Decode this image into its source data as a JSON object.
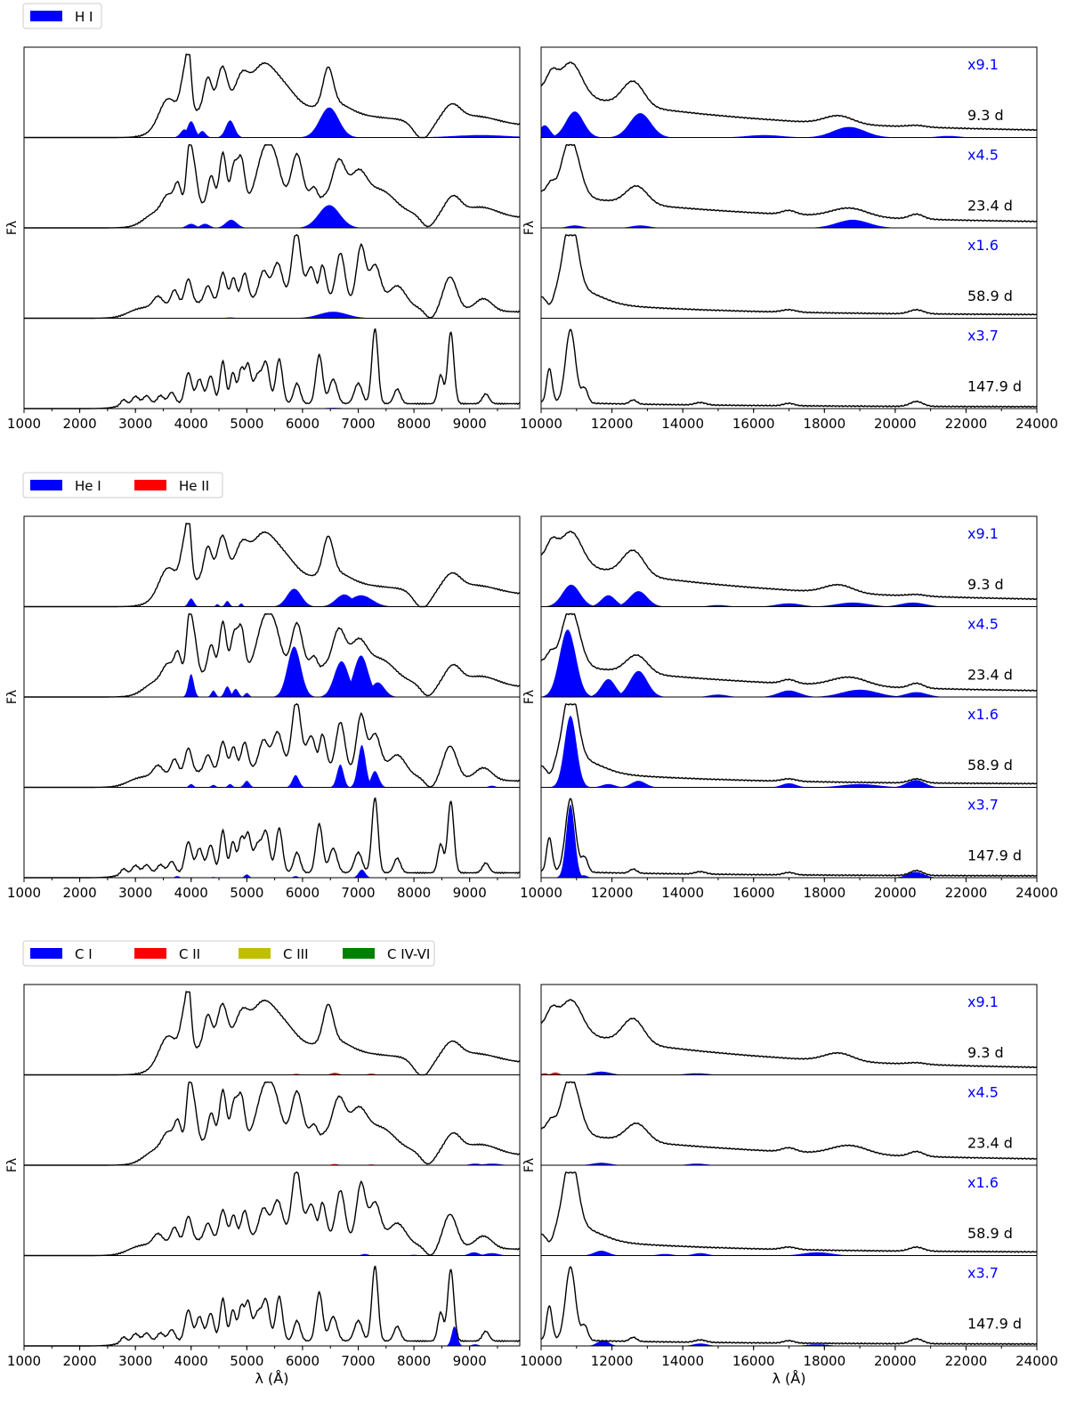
{
  "chart_data": {
    "type": "line",
    "description_units": "flux F_lambda (arbitrary, normalized per panel) vs wavelength in Angstrom",
    "common": {
      "ylabel": "Fλ",
      "xlabel": "λ (Å)",
      "epochs": [
        "9.3 d",
        "23.4 d",
        "58.9 d",
        "147.9 d"
      ],
      "nir_scale_factors": [
        "x9.1",
        "x4.5",
        "x1.6",
        "x3.7"
      ],
      "optical_xlim": [
        1000,
        9900
      ],
      "optical_ticks": [
        "1000",
        "2000",
        "3000",
        "4000",
        "5000",
        "6000",
        "7000",
        "8000",
        "9000"
      ],
      "nir_xlim": [
        10000,
        24000
      ],
      "nir_ticks": [
        "10000",
        "12000",
        "14000",
        "16000",
        "18000",
        "20000",
        "22000",
        "24000"
      ],
      "colors": {
        "blue": "#0000ff",
        "red": "#ff0000",
        "olive": "#bfbf00",
        "green": "#008000",
        "spectrum": "#000000",
        "scale_text": "#0000ff"
      }
    },
    "groups": [
      {
        "element": "H",
        "legend": [
          {
            "label": "H I",
            "color": "#0000ff"
          }
        ],
        "optical_contrib": [
          [
            {
              "c": 3880,
              "w": 70,
              "a": 0.1,
              "color": "#0000ff"
            },
            {
              "c": 4000,
              "w": 70,
              "a": 0.2,
              "color": "#0000ff"
            },
            {
              "c": 4200,
              "w": 60,
              "a": 0.08,
              "color": "#0000ff"
            },
            {
              "c": 4700,
              "w": 80,
              "a": 0.21,
              "color": "#0000ff"
            },
            {
              "c": 6480,
              "w": 170,
              "a": 0.37,
              "color": "#0000ff"
            },
            {
              "c": 9200,
              "w": 500,
              "a": 0.03,
              "color": "#0000ff"
            }
          ],
          [
            {
              "c": 4000,
              "w": 80,
              "a": 0.05,
              "color": "#0000ff"
            },
            {
              "c": 4250,
              "w": 80,
              "a": 0.05,
              "color": "#0000ff"
            },
            {
              "c": 4720,
              "w": 100,
              "a": 0.1,
              "color": "#0000ff"
            },
            {
              "c": 6480,
              "w": 190,
              "a": 0.28,
              "color": "#0000ff"
            }
          ],
          [
            {
              "c": 4700,
              "w": 80,
              "a": 0.01,
              "color": "#0000ff"
            },
            {
              "c": 6550,
              "w": 250,
              "a": 0.08,
              "color": "#0000ff"
            }
          ],
          [
            {
              "c": 6560,
              "w": 150,
              "a": 0.01,
              "color": "#0000ff"
            }
          ]
        ],
        "nir_contrib": [
          [
            {
              "c": 10100,
              "w": 150,
              "a": 0.15,
              "color": "#0000ff"
            },
            {
              "c": 10950,
              "w": 250,
              "a": 0.32,
              "color": "#0000ff"
            },
            {
              "c": 12800,
              "w": 300,
              "a": 0.3,
              "color": "#0000ff"
            },
            {
              "c": 16300,
              "w": 500,
              "a": 0.03,
              "color": "#0000ff"
            },
            {
              "c": 18700,
              "w": 450,
              "a": 0.13,
              "color": "#0000ff"
            },
            {
              "c": 21500,
              "w": 300,
              "a": 0.02,
              "color": "#0000ff"
            }
          ],
          [
            {
              "c": 10950,
              "w": 200,
              "a": 0.03,
              "color": "#0000ff"
            },
            {
              "c": 12800,
              "w": 250,
              "a": 0.03,
              "color": "#0000ff"
            },
            {
              "c": 18800,
              "w": 450,
              "a": 0.1,
              "color": "#0000ff"
            }
          ],
          [],
          []
        ]
      },
      {
        "element": "He",
        "legend": [
          {
            "label": "He I",
            "color": "#0000ff"
          },
          {
            "label": "He II",
            "color": "#ff0000"
          }
        ],
        "optical_contrib": [
          [
            {
              "c": 4000,
              "w": 50,
              "a": 0.1,
              "color": "#0000ff"
            },
            {
              "c": 4471,
              "w": 30,
              "a": 0.03,
              "color": "#0000ff"
            },
            {
              "c": 4650,
              "w": 40,
              "a": 0.07,
              "color": "#0000ff"
            },
            {
              "c": 4900,
              "w": 30,
              "a": 0.04,
              "color": "#0000ff"
            },
            {
              "c": 5850,
              "w": 130,
              "a": 0.22,
              "color": "#0000ff"
            },
            {
              "c": 6750,
              "w": 150,
              "a": 0.15,
              "color": "#0000ff"
            },
            {
              "c": 7050,
              "w": 200,
              "a": 0.14,
              "color": "#0000ff"
            }
          ],
          [
            {
              "c": 4000,
              "w": 50,
              "a": 0.28,
              "color": "#0000ff"
            },
            {
              "c": 4400,
              "w": 40,
              "a": 0.08,
              "color": "#0000ff"
            },
            {
              "c": 4650,
              "w": 50,
              "a": 0.13,
              "color": "#0000ff"
            },
            {
              "c": 4800,
              "w": 50,
              "a": 0.1,
              "color": "#0000ff"
            },
            {
              "c": 5000,
              "w": 40,
              "a": 0.05,
              "color": "#0000ff"
            },
            {
              "c": 5850,
              "w": 120,
              "a": 0.62,
              "color": "#0000ff"
            },
            {
              "c": 6700,
              "w": 130,
              "a": 0.44,
              "color": "#0000ff"
            },
            {
              "c": 7050,
              "w": 130,
              "a": 0.51,
              "color": "#0000ff"
            },
            {
              "c": 7350,
              "w": 120,
              "a": 0.18,
              "color": "#0000ff"
            }
          ],
          [
            {
              "c": 4000,
              "w": 40,
              "a": 0.04,
              "color": "#0000ff"
            },
            {
              "c": 4400,
              "w": 40,
              "a": 0.03,
              "color": "#0000ff"
            },
            {
              "c": 4700,
              "w": 40,
              "a": 0.04,
              "color": "#0000ff"
            },
            {
              "c": 5000,
              "w": 50,
              "a": 0.08,
              "color": "#0000ff"
            },
            {
              "c": 5876,
              "w": 60,
              "a": 0.15,
              "color": "#0000ff"
            },
            {
              "c": 6678,
              "w": 60,
              "a": 0.28,
              "color": "#0000ff"
            },
            {
              "c": 7065,
              "w": 70,
              "a": 0.52,
              "color": "#0000ff"
            },
            {
              "c": 7300,
              "w": 70,
              "a": 0.2,
              "color": "#0000ff"
            },
            {
              "c": 9400,
              "w": 60,
              "a": 0.02,
              "color": "#0000ff"
            }
          ],
          [
            {
              "c": 3750,
              "w": 40,
              "a": 0.02,
              "color": "#0000ff"
            },
            {
              "c": 4400,
              "w": 30,
              "a": 0.01,
              "color": "#0000ff"
            },
            {
              "c": 5000,
              "w": 40,
              "a": 0.04,
              "color": "#0000ff"
            },
            {
              "c": 5876,
              "w": 40,
              "a": 0.02,
              "color": "#0000ff"
            },
            {
              "c": 7065,
              "w": 60,
              "a": 0.1,
              "color": "#0000ff"
            }
          ]
        ],
        "nir_contrib": [
          [
            {
              "c": 10850,
              "w": 250,
              "a": 0.27,
              "color": "#0000ff"
            },
            {
              "c": 11900,
              "w": 200,
              "a": 0.14,
              "color": "#0000ff"
            },
            {
              "c": 12750,
              "w": 250,
              "a": 0.19,
              "color": "#0000ff"
            },
            {
              "c": 15000,
              "w": 250,
              "a": 0.02,
              "color": "#0000ff"
            },
            {
              "c": 17000,
              "w": 350,
              "a": 0.04,
              "color": "#0000ff"
            },
            {
              "c": 18800,
              "w": 450,
              "a": 0.05,
              "color": "#0000ff"
            },
            {
              "c": 20500,
              "w": 350,
              "a": 0.05,
              "color": "#0000ff"
            }
          ],
          [
            {
              "c": 10750,
              "w": 230,
              "a": 0.83,
              "color": "#0000ff"
            },
            {
              "c": 11900,
              "w": 200,
              "a": 0.22,
              "color": "#0000ff"
            },
            {
              "c": 12750,
              "w": 250,
              "a": 0.32,
              "color": "#0000ff"
            },
            {
              "c": 15000,
              "w": 250,
              "a": 0.03,
              "color": "#0000ff"
            },
            {
              "c": 17000,
              "w": 300,
              "a": 0.08,
              "color": "#0000ff"
            },
            {
              "c": 19000,
              "w": 500,
              "a": 0.09,
              "color": "#0000ff"
            },
            {
              "c": 20600,
              "w": 300,
              "a": 0.06,
              "color": "#0000ff"
            }
          ],
          [
            {
              "c": 10830,
              "w": 170,
              "a": 0.88,
              "color": "#0000ff"
            },
            {
              "c": 11900,
              "w": 180,
              "a": 0.04,
              "color": "#0000ff"
            },
            {
              "c": 12750,
              "w": 200,
              "a": 0.08,
              "color": "#0000ff"
            },
            {
              "c": 17000,
              "w": 200,
              "a": 0.05,
              "color": "#0000ff"
            },
            {
              "c": 19000,
              "w": 500,
              "a": 0.04,
              "color": "#0000ff"
            },
            {
              "c": 20580,
              "w": 250,
              "a": 0.09,
              "color": "#0000ff"
            }
          ],
          [
            {
              "c": 10830,
              "w": 120,
              "a": 0.9,
              "color": "#0000ff"
            },
            {
              "c": 11200,
              "w": 100,
              "a": 0.03,
              "color": "#0000ff"
            },
            {
              "c": 20580,
              "w": 230,
              "a": 0.07,
              "color": "#0000ff"
            }
          ]
        ]
      },
      {
        "element": "C",
        "legend": [
          {
            "label": "C I",
            "color": "#0000ff"
          },
          {
            "label": "C II",
            "color": "#ff0000"
          },
          {
            "label": "C III",
            "color": "#bfbf00"
          },
          {
            "label": "C IV-VI",
            "color": "#008000"
          }
        ],
        "optical_contrib": [
          [
            {
              "c": 5890,
              "w": 60,
              "a": 0.012,
              "color": "#ff0000"
            },
            {
              "c": 6580,
              "w": 70,
              "a": 0.025,
              "color": "#ff0000"
            },
            {
              "c": 7235,
              "w": 60,
              "a": 0.015,
              "color": "#ff0000"
            }
          ],
          [
            {
              "c": 6580,
              "w": 60,
              "a": 0.015,
              "color": "#ff0000"
            },
            {
              "c": 7235,
              "w": 60,
              "a": 0.01,
              "color": "#ff0000"
            },
            {
              "c": 9100,
              "w": 100,
              "a": 0.02,
              "color": "#0000ff"
            },
            {
              "c": 9400,
              "w": 150,
              "a": 0.02,
              "color": "#0000ff"
            }
          ],
          [
            {
              "c": 7120,
              "w": 60,
              "a": 0.02,
              "color": "#0000ff"
            },
            {
              "c": 8000,
              "w": 60,
              "a": 0.01,
              "color": "#0000ff"
            },
            {
              "c": 9080,
              "w": 90,
              "a": 0.04,
              "color": "#0000ff"
            },
            {
              "c": 9400,
              "w": 120,
              "a": 0.03,
              "color": "#0000ff"
            }
          ],
          [
            {
              "c": 8727,
              "w": 50,
              "a": 0.24,
              "color": "#0000ff"
            },
            {
              "c": 9100,
              "w": 60,
              "a": 0.02,
              "color": "#0000ff"
            }
          ]
        ],
        "nir_contrib": [
          [
            {
              "c": 10100,
              "w": 80,
              "a": 0.02,
              "color": "#ff0000"
            },
            {
              "c": 10400,
              "w": 100,
              "a": 0.03,
              "color": "#ff0000"
            },
            {
              "c": 11700,
              "w": 250,
              "a": 0.04,
              "color": "#0000ff"
            },
            {
              "c": 14400,
              "w": 300,
              "a": 0.02,
              "color": "#0000ff"
            }
          ],
          [
            {
              "c": 11700,
              "w": 250,
              "a": 0.03,
              "color": "#0000ff"
            },
            {
              "c": 14400,
              "w": 250,
              "a": 0.02,
              "color": "#0000ff"
            }
          ],
          [
            {
              "c": 11700,
              "w": 200,
              "a": 0.06,
              "color": "#0000ff"
            },
            {
              "c": 13500,
              "w": 200,
              "a": 0.02,
              "color": "#0000ff"
            },
            {
              "c": 14500,
              "w": 200,
              "a": 0.03,
              "color": "#0000ff"
            },
            {
              "c": 17800,
              "w": 400,
              "a": 0.04,
              "color": "#0000ff"
            }
          ],
          [
            {
              "c": 11750,
              "w": 160,
              "a": 0.07,
              "color": "#0000ff"
            },
            {
              "c": 14500,
              "w": 200,
              "a": 0.03,
              "color": "#0000ff"
            },
            {
              "c": 17800,
              "w": 300,
              "a": 0.02,
              "color": "#0000ff"
            }
          ]
        ]
      }
    ]
  }
}
